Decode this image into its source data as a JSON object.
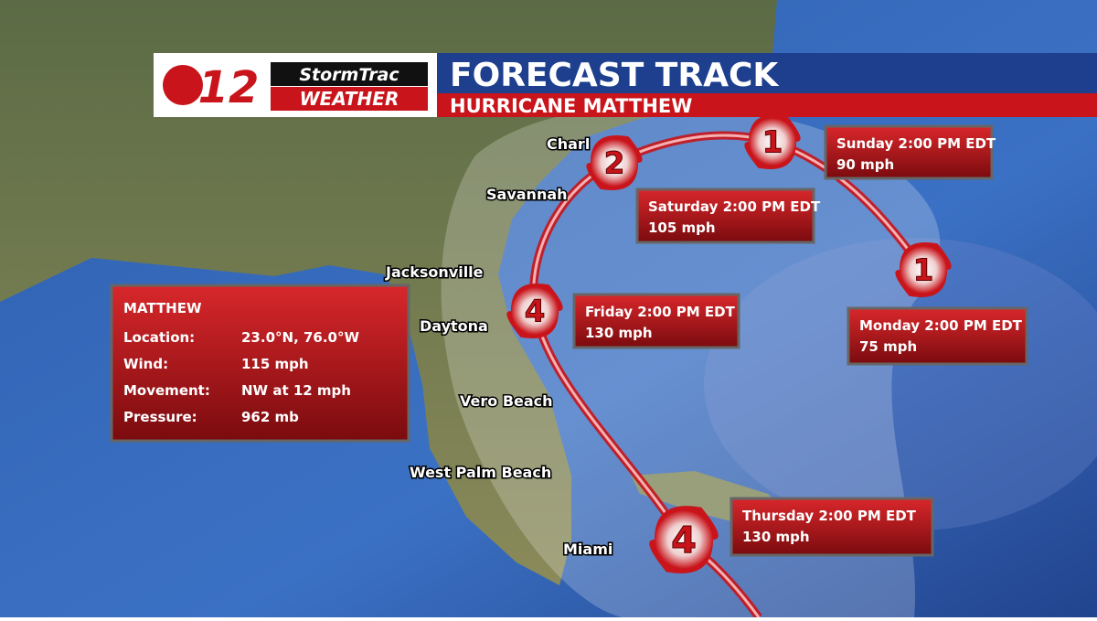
{
  "header": {
    "logo_number": "12",
    "logo_line1": "StormTrac",
    "logo_line2": "WEATHER",
    "title": "FORECAST TRACK",
    "subtitle": "HURRICANE MATTHEW"
  },
  "cities": [
    "Charl",
    "Savannah",
    "Jacksonville",
    "Daytona",
    "Vero Beach",
    "West Palm Beach",
    "Miami"
  ],
  "info": {
    "name": "MATTHEW",
    "rows": [
      [
        "Location:",
        "23.0°N, 76.0°W"
      ],
      [
        "Wind:",
        "115 mph"
      ],
      [
        "Movement:",
        "NW at 12 mph"
      ],
      [
        "Pressure:",
        "962 mb"
      ]
    ]
  },
  "forecast": [
    {
      "category": "4",
      "time": "Thursday 2:00 PM EDT",
      "wind": "130 mph"
    },
    {
      "category": "4",
      "time": "Friday 2:00 PM EDT",
      "wind": "130 mph"
    },
    {
      "category": "2",
      "time": "Saturday 2:00 PM EDT",
      "wind": "105 mph"
    },
    {
      "category": "1",
      "time": "Sunday 2:00 PM EDT",
      "wind": "90 mph"
    },
    {
      "category": "1",
      "time": "Monday 2:00 PM EDT",
      "wind": "75 mph"
    }
  ]
}
